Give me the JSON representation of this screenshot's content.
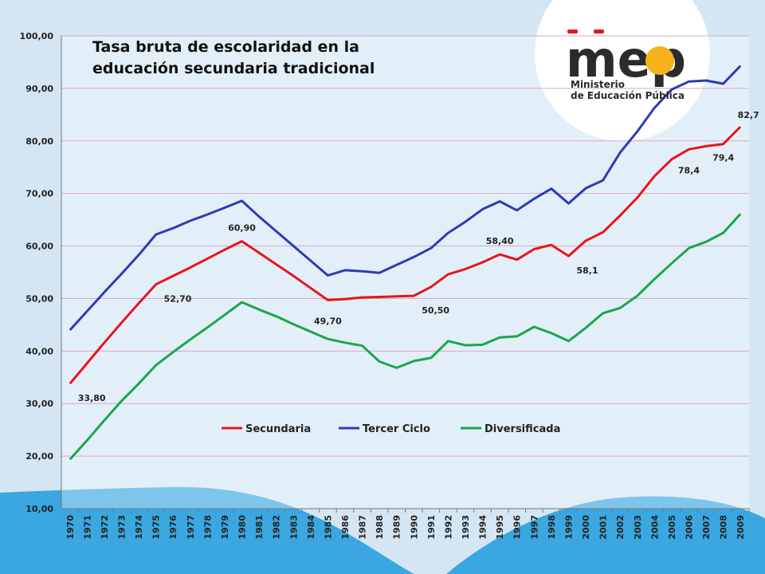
{
  "logo": {
    "mark": "mep",
    "line1": "Ministerio",
    "line2": "de Educación Pública"
  },
  "chart_data": {
    "type": "line",
    "title": [
      "Tasa bruta de escolaridad en la",
      "educación secundaria tradicional"
    ],
    "xlabel": "",
    "ylabel": "",
    "ylim": [
      10,
      100
    ],
    "yticks": [
      "10,00",
      "20,00",
      "30,00",
      "40,00",
      "50,00",
      "60,00",
      "70,00",
      "80,00",
      "90,00",
      "100,00"
    ],
    "grid": true,
    "legend_position": "bottom-center",
    "x": [
      "1970",
      "1971",
      "1972",
      "1973",
      "1974",
      "1975",
      "1976",
      "1977",
      "1978",
      "1979",
      "1980",
      "1981",
      "1982",
      "1983",
      "1984",
      "1985",
      "1986",
      "1987",
      "1988",
      "1989",
      "1990",
      "1991",
      "1992",
      "1993",
      "1994",
      "1995",
      "1996",
      "1997",
      "1998",
      "1999",
      "2000",
      "2001",
      "2002",
      "2003",
      "2004",
      "2005",
      "2006",
      "2007",
      "2008",
      "2009"
    ],
    "series": [
      {
        "name": "Secundaria",
        "color": "#e8141c",
        "values": [
          33.8,
          37.7,
          41.6,
          45.4,
          49.1,
          52.7,
          54.3,
          55.9,
          57.6,
          59.3,
          60.9,
          58.7,
          56.5,
          54.3,
          52.0,
          49.7,
          49.9,
          50.2,
          50.3,
          50.4,
          50.5,
          52.2,
          54.6,
          55.6,
          56.9,
          58.4,
          57.4,
          59.4,
          60.2,
          58.1,
          61.0,
          62.6,
          65.8,
          69.2,
          73.3,
          76.5,
          78.4,
          79.0,
          79.4,
          82.7
        ],
        "labels": [
          {
            "i": 0,
            "text": "33,80",
            "pos": "below-right"
          },
          {
            "i": 5,
            "text": "52,70",
            "pos": "below-right"
          },
          {
            "i": 10,
            "text": "60,90",
            "pos": "above"
          },
          {
            "i": 15,
            "text": "49,70",
            "pos": "below"
          },
          {
            "i": 20,
            "text": "50,50",
            "pos": "below-right"
          },
          {
            "i": 25,
            "text": "58,40",
            "pos": "above"
          },
          {
            "i": 29,
            "text": "58,1",
            "pos": "below-right"
          },
          {
            "i": 36,
            "text": "78,4",
            "pos": "below"
          },
          {
            "i": 38,
            "text": "79,4",
            "pos": "below-above"
          },
          {
            "i": 39,
            "text": "82,7",
            "pos": "above"
          }
        ]
      },
      {
        "name": "Tercer Ciclo",
        "color": "#2e3bb5",
        "values": [
          44.0,
          47.6,
          51.2,
          54.7,
          58.3,
          62.2,
          63.4,
          64.8,
          66.0,
          67.3,
          68.6,
          65.6,
          62.8,
          60.0,
          57.2,
          54.4,
          55.4,
          55.2,
          54.9,
          56.4,
          57.9,
          59.6,
          62.5,
          64.6,
          67.0,
          68.5,
          66.8,
          69.0,
          70.9,
          68.1,
          71.0,
          72.5,
          77.8,
          81.8,
          86.3,
          89.8,
          91.3,
          91.5,
          90.9,
          94.3
        ]
      },
      {
        "name": "Diversificada",
        "color": "#1aa64b",
        "values": [
          19.4,
          23.0,
          26.8,
          30.5,
          33.8,
          37.3,
          39.8,
          42.2,
          44.5,
          46.9,
          49.3,
          47.9,
          46.6,
          45.1,
          43.7,
          42.3,
          41.6,
          41.0,
          38.0,
          36.8,
          38.1,
          38.7,
          41.9,
          41.1,
          41.2,
          42.6,
          42.8,
          44.6,
          43.4,
          41.9,
          44.4,
          47.2,
          48.2,
          50.5,
          53.7,
          56.7,
          59.6,
          60.8,
          62.5,
          66.1
        ]
      }
    ]
  }
}
